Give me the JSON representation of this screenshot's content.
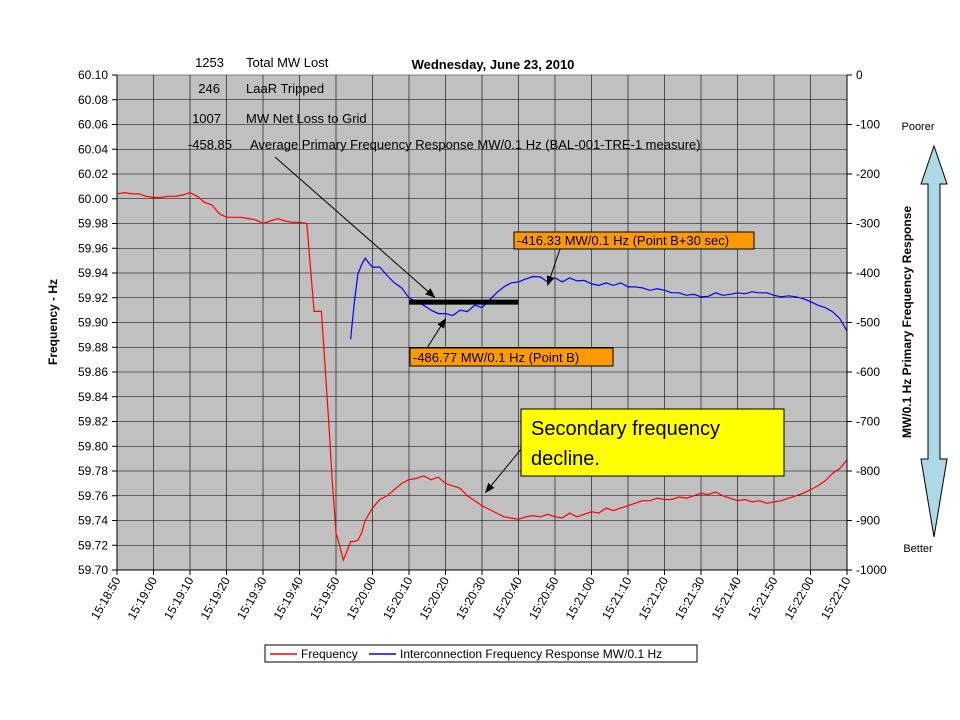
{
  "chart_data": {
    "type": "line",
    "title": "Wednesday, June 23, 2010",
    "ylabel": "Frequency - Hz",
    "y2label": "MW/0.1 Hz Primary Frequency Response",
    "ylim": [
      59.7,
      60.1
    ],
    "y2lim": [
      -1000,
      0
    ],
    "yticks": [
      "60.10",
      "60.08",
      "60.06",
      "60.04",
      "60.02",
      "60.00",
      "59.98",
      "59.96",
      "59.94",
      "59.92",
      "59.90",
      "59.88",
      "59.86",
      "59.84",
      "59.82",
      "59.80",
      "59.78",
      "59.76",
      "59.74",
      "59.72",
      "59.70"
    ],
    "y2ticks": [
      "0",
      "-100",
      "-200",
      "-300",
      "-400",
      "-500",
      "-600",
      "-700",
      "-800",
      "-900",
      "-1000"
    ],
    "xticks": [
      "15:18:50",
      "15:19:00",
      "15:19:10",
      "15:19:20",
      "15:19:30",
      "15:19:40",
      "15:19:50",
      "15:20:00",
      "15:20:10",
      "15:20:20",
      "15:20:30",
      "15:20:40",
      "15:20:50",
      "15:21:00",
      "15:21:10",
      "15:21:20",
      "15:21:30",
      "15:21:40",
      "15:21:50",
      "15:22:00",
      "15:22:10"
    ],
    "grid": true,
    "legend_position": "bottom",
    "stats": [
      {
        "value": "1253",
        "label": "Total MW Lost"
      },
      {
        "value": "246",
        "label": "LaaR Tripped"
      },
      {
        "value": "1007",
        "label": "MW Net Loss to Grid"
      },
      {
        "value": "-458.85",
        "label": "Average Primary Frequency Response MW/0.1 Hz (BAL-001-TRE-1 measure)"
      }
    ],
    "annotations": {
      "point_b30": "-416.33 MW/0.1 Hz (Point B+30 sec)",
      "point_b": "-486.77 MW/0.1 Hz (Point B)",
      "secondary_line1": "Secondary frequency",
      "secondary_line2": "decline."
    },
    "side_labels": {
      "top": "Poorer",
      "bottom": "Better"
    },
    "average_response": -458.85,
    "average_window_seconds": [
      80,
      110
    ],
    "series": [
      {
        "name": "Frequency",
        "axis": "left",
        "color": "#ff0000",
        "x": [
          0,
          2,
          4,
          6,
          8,
          10,
          12,
          14,
          16,
          18,
          20,
          22,
          24,
          26,
          28,
          30,
          32,
          34,
          36,
          38,
          40,
          42,
          44,
          46,
          48,
          50,
          52,
          54,
          55,
          56,
          58,
          59,
          60,
          61,
          62,
          63,
          64,
          65,
          66,
          67,
          68,
          70,
          72,
          74,
          76,
          78,
          80,
          82,
          84,
          86,
          88,
          90,
          92,
          94,
          96,
          98,
          100,
          102,
          104,
          106,
          108,
          110,
          112,
          114,
          116,
          118,
          120,
          122,
          124,
          126,
          128,
          130,
          132,
          134,
          136,
          138,
          140,
          142,
          144,
          146,
          148,
          150,
          152,
          154,
          156,
          158,
          160,
          162,
          164,
          166,
          168,
          170,
          172,
          174,
          176,
          178,
          180,
          182,
          184,
          186,
          188,
          190,
          192,
          194,
          196,
          198,
          200
        ],
        "y": [
          60.004,
          60.005,
          60.004,
          60.004,
          60.002,
          60.001,
          60.001,
          60.002,
          60.002,
          60.003,
          60.005,
          60.002,
          59.997,
          59.995,
          59.988,
          59.985,
          59.985,
          59.985,
          59.984,
          59.983,
          59.98,
          59.982,
          59.984,
          59.982,
          59.981,
          59.981,
          59.98,
          59.909,
          59.909,
          59.909,
          59.82,
          59.77,
          59.73,
          59.72,
          59.708,
          59.715,
          59.723,
          59.723,
          59.724,
          59.73,
          59.74,
          59.75,
          59.757,
          59.76,
          59.765,
          59.77,
          59.773,
          59.774,
          59.776,
          59.773,
          59.775,
          59.77,
          59.768,
          59.766,
          59.76,
          59.756,
          59.752,
          59.749,
          59.746,
          59.743,
          59.742,
          59.741,
          59.743,
          59.744,
          59.743,
          59.745,
          59.743,
          59.742,
          59.746,
          59.743,
          59.745,
          59.747,
          59.746,
          59.75,
          59.748,
          59.75,
          59.752,
          59.754,
          59.756,
          59.756,
          59.758,
          59.757,
          59.757,
          59.759,
          59.758,
          59.76,
          59.762,
          59.761,
          59.763,
          59.76,
          59.758,
          59.756,
          59.757,
          59.755,
          59.756,
          59.754,
          59.755,
          59.756,
          59.758,
          59.76,
          59.762,
          59.765,
          59.768,
          59.772,
          59.778,
          59.782,
          59.789
        ]
      },
      {
        "name": "Interconnection Frequency Response MW/0.1 Hz",
        "axis": "right",
        "color": "#0000ff",
        "x": [
          64,
          65,
          66,
          67,
          68,
          69,
          70,
          72,
          74,
          76,
          78,
          80,
          82,
          84,
          86,
          88,
          90,
          92,
          94,
          96,
          98,
          100,
          102,
          104,
          106,
          108,
          110,
          112,
          114,
          116,
          118,
          120,
          122,
          124,
          126,
          128,
          130,
          132,
          134,
          136,
          138,
          140,
          142,
          144,
          146,
          148,
          150,
          152,
          154,
          156,
          158,
          160,
          162,
          164,
          166,
          168,
          170,
          172,
          174,
          176,
          178,
          180,
          182,
          184,
          186,
          188,
          190,
          192,
          194,
          196,
          198,
          200
        ],
        "y": [
          -534,
          -460,
          -402,
          -383,
          -370,
          -380,
          -388,
          -388,
          -405,
          -420,
          -430,
          -450,
          -458,
          -465,
          -475,
          -482,
          -482,
          -486,
          -475,
          -478,
          -465,
          -470,
          -455,
          -440,
          -428,
          -420,
          -418,
          -412,
          -407,
          -408,
          -418,
          -410,
          -418,
          -410,
          -416,
          -415,
          -422,
          -425,
          -420,
          -425,
          -420,
          -428,
          -428,
          -430,
          -435,
          -432,
          -435,
          -440,
          -440,
          -445,
          -443,
          -448,
          -447,
          -440,
          -445,
          -443,
          -440,
          -442,
          -438,
          -440,
          -440,
          -445,
          -448,
          -446,
          -448,
          -452,
          -458,
          -465,
          -470,
          -478,
          -492,
          -517
        ]
      }
    ]
  }
}
